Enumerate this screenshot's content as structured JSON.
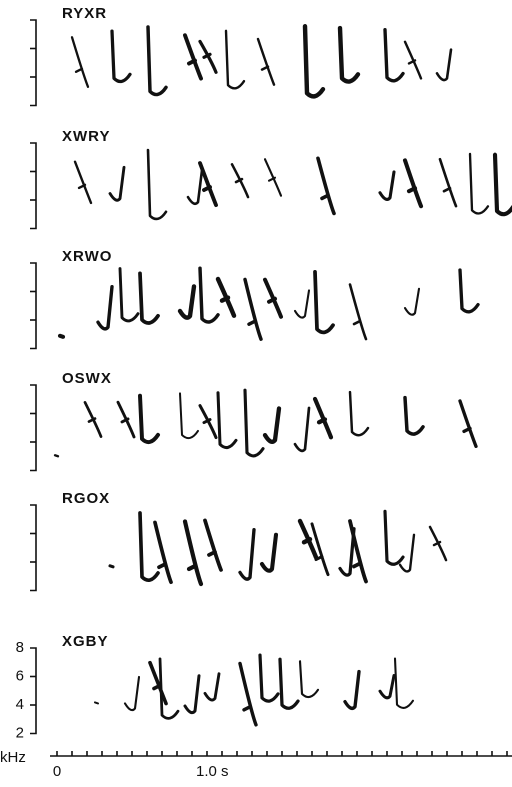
{
  "panels": [
    {
      "label": "RYXR"
    },
    {
      "label": "XWRY"
    },
    {
      "label": "XRWO"
    },
    {
      "label": "OSWX"
    },
    {
      "label": "RGOX"
    },
    {
      "label": "XGBY"
    }
  ],
  "y_axis": {
    "ticks": [
      "8",
      "6",
      "4",
      "2"
    ],
    "unit": "kHz"
  },
  "x_axis": {
    "ticks": [
      "0",
      "1.0 s"
    ]
  }
}
